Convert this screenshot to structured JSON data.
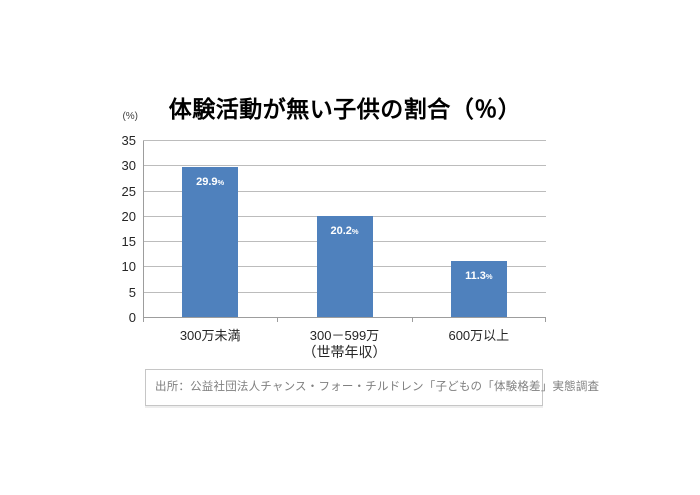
{
  "chart_data": {
    "type": "bar",
    "title": "体験活動が無い子供の割合（％）",
    "y_unit_label": "(%)",
    "categories": [
      "300万未満",
      "300－599万",
      "600万以上"
    ],
    "values": [
      29.9,
      20.2,
      11.3
    ],
    "data_labels": [
      "29.9",
      "20.2",
      "11.3"
    ],
    "data_label_suffix": "%",
    "data_label_color": "#ffffff",
    "xlabel": "（世帯年収）",
    "ylabel": "",
    "ylim": [
      0,
      35
    ],
    "ytick_step": 5,
    "yticks": [
      0,
      5,
      10,
      15,
      20,
      25,
      30,
      35
    ],
    "grid": true,
    "legend": "none",
    "bar_color": "#4f81bd"
  },
  "source_note": "出所：公益社団法人チャンス・フォー・チルドレン「子どもの「体験格差」実態調査"
}
